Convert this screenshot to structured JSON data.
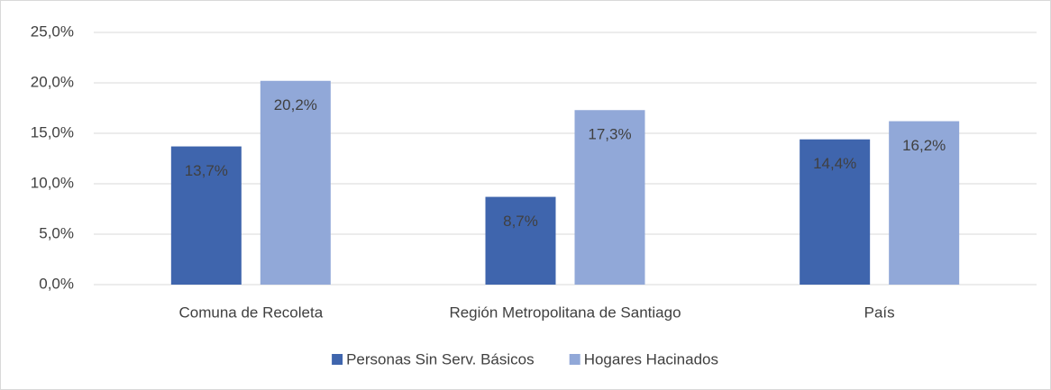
{
  "chart_data": {
    "type": "bar",
    "categories": [
      "Comuna de Recoleta",
      "Región Metropolitana de Santiago",
      "País"
    ],
    "series": [
      {
        "name": "Personas Sin Serv. Básicos",
        "color": "#3f65ad",
        "values": [
          13.7,
          8.7,
          14.4
        ],
        "value_labels": [
          "13,7%",
          "8,7%",
          "14,4%"
        ]
      },
      {
        "name": "Hogares Hacinados",
        "color": "#91a8d8",
        "values": [
          20.2,
          17.3,
          16.2
        ],
        "value_labels": [
          "20,2%",
          "17,3%",
          "16,2%"
        ]
      }
    ],
    "ylim": [
      0,
      25
    ],
    "yticks": [
      {
        "value": 0,
        "label": "0,0%"
      },
      {
        "value": 5,
        "label": "5,0%"
      },
      {
        "value": 10,
        "label": "10,0%"
      },
      {
        "value": 15,
        "label": "15,0%"
      },
      {
        "value": 20,
        "label": "20,0%"
      },
      {
        "value": 25,
        "label": "25,0%"
      }
    ],
    "grid": true,
    "legend": "bottom"
  }
}
